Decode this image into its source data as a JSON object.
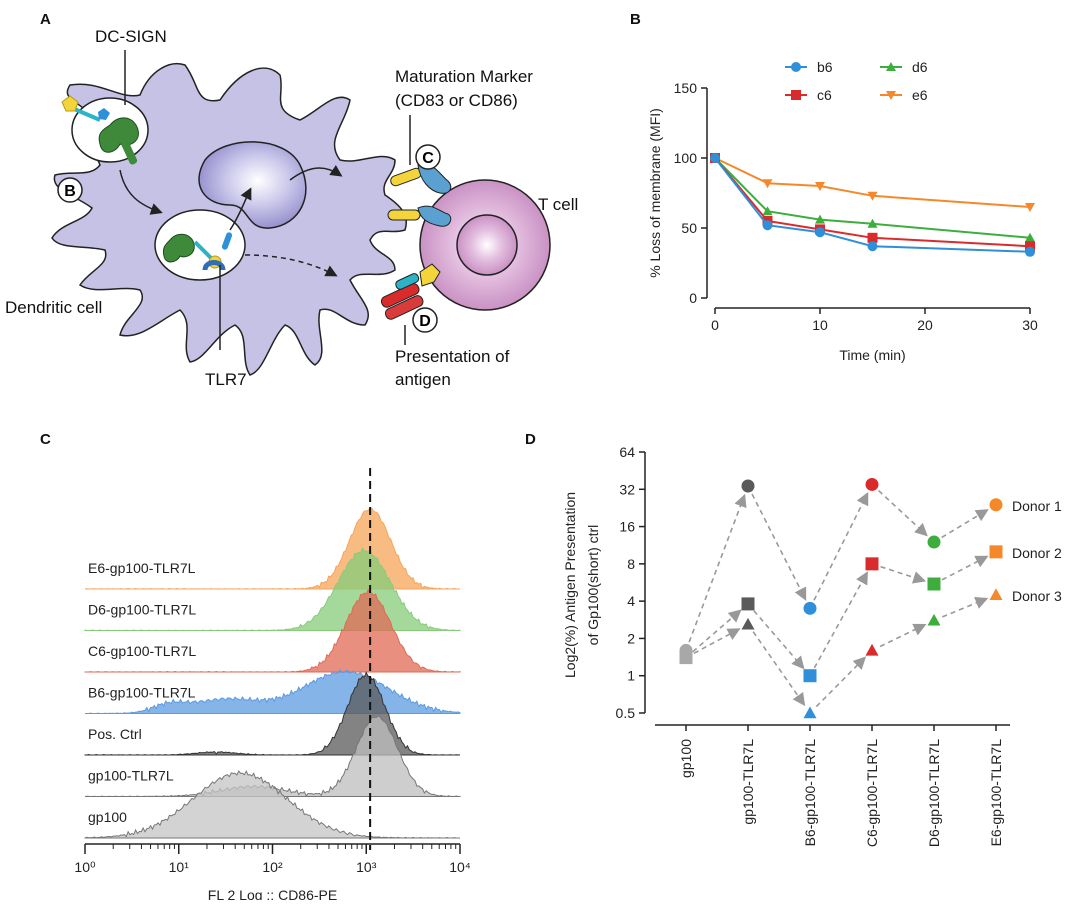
{
  "panels": {
    "a": "A",
    "b": "B",
    "c": "C",
    "d": "D"
  },
  "diagram": {
    "dc_sign": "DC-SIGN",
    "maturation_line1": "Maturation Marker",
    "maturation_line2": "(CD83 or CD86)",
    "t_cell": "T cell",
    "dendritic_cell": "Dendritic cell",
    "tlr7": "TLR7",
    "presentation_line1": "Presentation of",
    "presentation_line2": "antigen",
    "marker_b": "B",
    "marker_c": "C",
    "marker_d": "D"
  },
  "colors": {
    "b6": "#2f8fd8",
    "c6": "#d92b2b",
    "d6": "#3dae3d",
    "e6": "#f5892a",
    "gray_dark": "#5a5a5a",
    "gray_light": "#a8a8a8"
  },
  "chart_data": [
    {
      "id": "B",
      "type": "line",
      "ylabel": "% Loss of membrane (MFI)",
      "xlabel": "Time (min)",
      "xlim": [
        0,
        30
      ],
      "ylim": [
        0,
        150
      ],
      "xticks": [
        0,
        10,
        20,
        30
      ],
      "yticks": [
        0,
        50,
        100,
        150
      ],
      "x": [
        0,
        5,
        10,
        15,
        30
      ],
      "series": [
        {
          "name": "b6",
          "values": [
            100,
            52,
            47,
            37,
            33
          ],
          "marker": "circle"
        },
        {
          "name": "c6",
          "values": [
            100,
            55,
            49,
            43,
            37
          ],
          "marker": "square"
        },
        {
          "name": "d6",
          "values": [
            100,
            62,
            56,
            53,
            43
          ],
          "marker": "triangle-up"
        },
        {
          "name": "e6",
          "values": [
            100,
            82,
            80,
            73,
            65
          ],
          "marker": "triangle-down"
        }
      ]
    },
    {
      "id": "C",
      "type": "area",
      "xlabel": "FL 2 Log :: CD86-PE",
      "xscale": "log",
      "xlim": [
        1,
        10000
      ],
      "xticks": [
        "10⁰",
        "10¹",
        "10²",
        "10³",
        "10⁴"
      ],
      "reference_line": 1100,
      "series": [
        {
          "name": "E6-gp100-TLR7L",
          "peak": 1100,
          "width": 0.22,
          "color": "#f5a55a"
        },
        {
          "name": "D6-gp100-TLR7L",
          "peak": 950,
          "width": 0.28,
          "color": "#86cc7a"
        },
        {
          "name": "C6-gp100-TLR7L",
          "peak": 1050,
          "width": 0.24,
          "color": "#e06a55"
        },
        {
          "name": "B6-gp100-TLR7L",
          "peak": 600,
          "width": 0.45,
          "color": "#5b9be0"
        },
        {
          "name": "Pos. Ctrl",
          "peak": 1000,
          "width": 0.2,
          "color": "#5a5a5a"
        },
        {
          "name": "gp100-TLR7L",
          "peak": 1300,
          "width": 0.22,
          "color": "#bdbdbd"
        },
        {
          "name": "gp100",
          "peak": 45,
          "width": 0.5,
          "color": "#c4c4c4"
        }
      ]
    },
    {
      "id": "D",
      "type": "scatter",
      "ylabel_line1": "Log2(%) Antigen Presentation",
      "ylabel_line2": "of Gp100(short) ctrl",
      "yscale": "log2",
      "yticks": [
        "0.5",
        "1",
        "2",
        "4",
        "8",
        "16",
        "32",
        "64"
      ],
      "categories": [
        "gp100",
        "gp100-TLR7L",
        "B6-gp100-TLR7L",
        "C6-gp100-TLR7L",
        "D6-gp100-TLR7L",
        "E6-gp100-TLR7L"
      ],
      "series": [
        {
          "name": "Donor 1",
          "marker": "circle",
          "values": [
            1.6,
            34,
            3.5,
            35,
            12,
            24
          ]
        },
        {
          "name": "Donor 2",
          "marker": "square",
          "values": [
            1.4,
            3.8,
            1.0,
            8,
            5.5,
            10
          ]
        },
        {
          "name": "Donor 3",
          "marker": "triangle",
          "values": [
            1.4,
            2.6,
            0.5,
            1.6,
            2.8,
            4.5
          ]
        }
      ],
      "marker_colors": [
        "#a8a8a8",
        "#5a5a5a",
        "#2f8fd8",
        "#d92b2b",
        "#3dae3d",
        "#f5892a"
      ]
    }
  ]
}
